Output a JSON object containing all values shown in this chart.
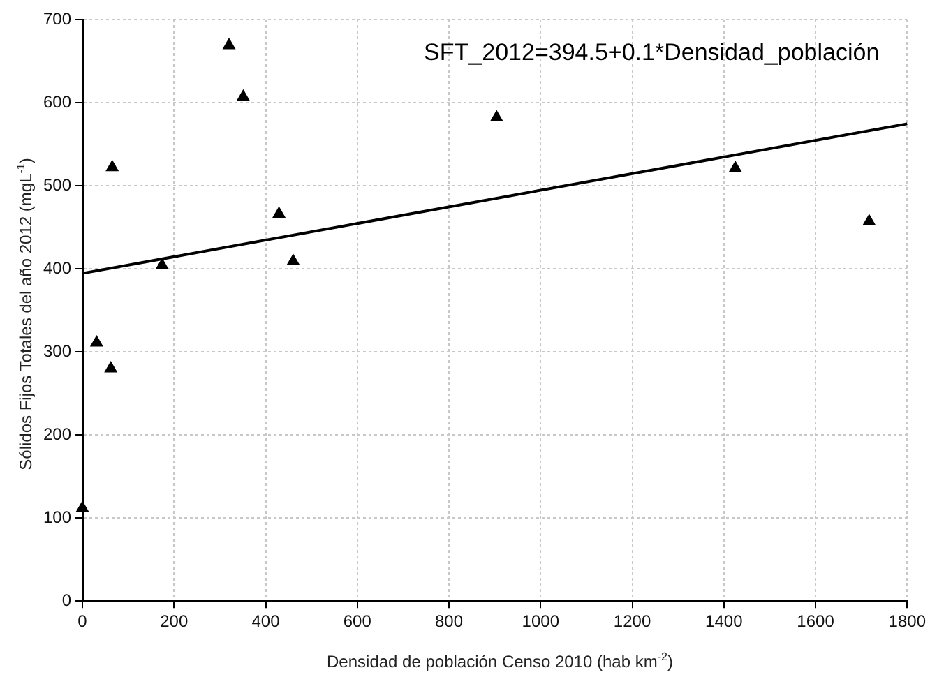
{
  "chart_data": {
    "type": "scatter",
    "xlabel": "Densidad de población Censo 2010 (hab km$^{-2}$)",
    "ylabel": "Sólidos Fijos Totales del año 2012 (mgL$^{-1}$)",
    "annotations": [
      "SFT_2012=394.5+0.1*Densidad_población"
    ],
    "xlim": [
      0,
      1800
    ],
    "xticks": [
      0,
      200,
      400,
      600,
      800,
      1000,
      1200,
      1400,
      1600,
      1800
    ],
    "ylim": [
      0,
      700
    ],
    "yticks": [
      0,
      100,
      200,
      300,
      400,
      500,
      600,
      700
    ],
    "grid": true,
    "legend": false,
    "marker": "triangle",
    "series": [
      {
        "color": "#000000",
        "x": [
          0,
          31,
          62,
          65,
          174,
          320,
          351,
          429,
          460,
          904,
          1425,
          1717
        ],
        "values": [
          112,
          311,
          280,
          522,
          404,
          669,
          607,
          466,
          409,
          582,
          521,
          457
        ]
      },
      {
        "type": "line",
        "color": "#000000",
        "marker": "none",
        "x": [
          0,
          1800
        ],
        "values": [
          394.5,
          574.5
        ]
      }
    ]
  }
}
